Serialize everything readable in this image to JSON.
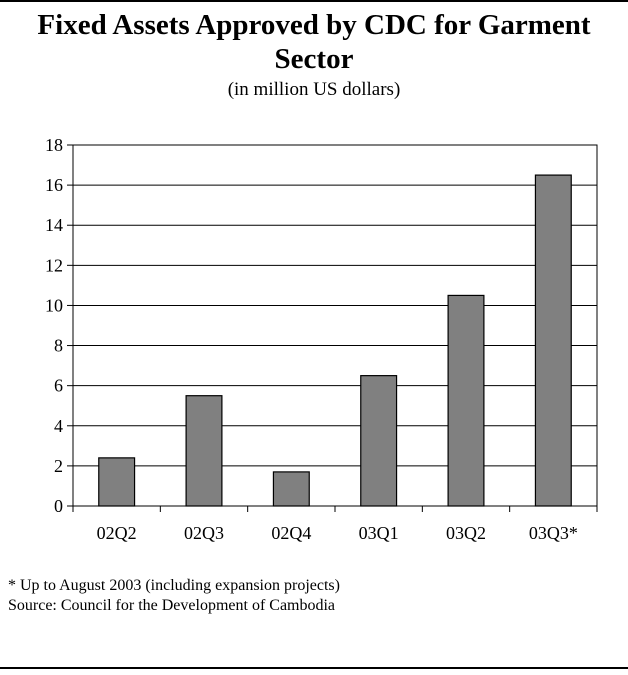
{
  "chart_data": {
    "type": "bar",
    "title": "Fixed Assets Approved by CDC for Garment Sector",
    "subtitle": "(in million US dollars)",
    "categories": [
      "02Q2",
      "02Q3",
      "02Q4",
      "03Q1",
      "03Q2",
      "03Q3*"
    ],
    "values": [
      2.4,
      5.5,
      1.7,
      6.5,
      10.5,
      16.5
    ],
    "ylim": [
      0,
      18
    ],
    "yticks": [
      0,
      2,
      4,
      6,
      8,
      10,
      12,
      14,
      16,
      18
    ],
    "grid": true,
    "legend": "none",
    "bar_color": "#808080"
  },
  "notes": {
    "footnote": "* Up to August 2003 (including expansion projects)",
    "source": "Source: Council for the Development of Cambodia"
  }
}
